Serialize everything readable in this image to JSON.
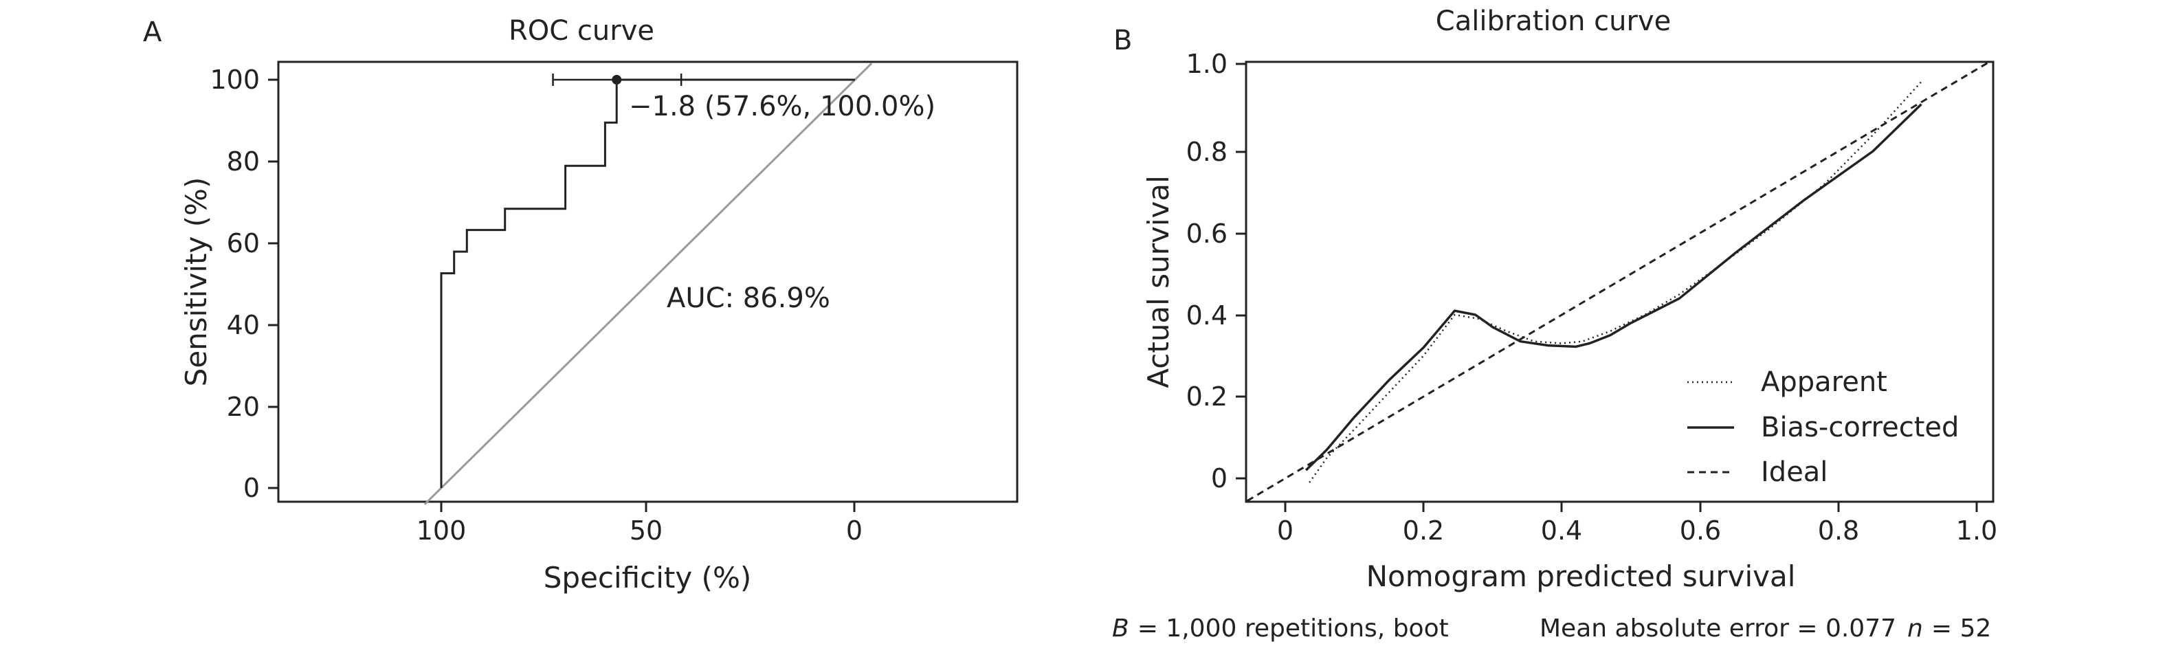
{
  "panels": {
    "a_label": "A",
    "b_label": "B"
  },
  "chart_data": [
    {
      "type": "line",
      "title": "ROC curve",
      "xlabel": "Specificity (%)",
      "ylabel": "Sensitivity (%)",
      "x_reversed": true,
      "xlim": [
        138,
        -30
      ],
      "ylim": [
        -4,
        105
      ],
      "xticks": [
        100,
        50,
        0
      ],
      "yticks": [
        0,
        20,
        40,
        60,
        80,
        100
      ],
      "xtick_labels": [
        "100",
        "50",
        "0"
      ],
      "ytick_labels": [
        "0",
        "20",
        "40",
        "60",
        "80",
        "100"
      ],
      "roc_points": [
        [
          100,
          0
        ],
        [
          100,
          52.6
        ],
        [
          96.9,
          52.6
        ],
        [
          96.9,
          57.9
        ],
        [
          93.8,
          57.9
        ],
        [
          93.8,
          63.2
        ],
        [
          84.6,
          63.2
        ],
        [
          84.6,
          68.4
        ],
        [
          70,
          68.4
        ],
        [
          70,
          78.9
        ],
        [
          60.4,
          78.9
        ],
        [
          60.4,
          89.5
        ],
        [
          57.6,
          89.5
        ],
        [
          57.6,
          100
        ],
        [
          0,
          100
        ]
      ],
      "diagonal": [
        [
          104,
          -4
        ],
        [
          -4,
          104
        ]
      ],
      "threshold_point": {
        "specificity": 57.6,
        "sensitivity": 100,
        "label": "−1.8 (57.6%, 100.0%)"
      },
      "threshold_ci": {
        "low": 42,
        "high": 73,
        "cap_at_sensitivity": 100
      },
      "auc_label": "AUC: 86.9%",
      "colors": {
        "roc": "#222222",
        "diagonal": "#9a9a9a"
      }
    },
    {
      "type": "line",
      "title": "Calibration curve",
      "xlabel": "Nomogram predicted survival",
      "ylabel": "Actual survival",
      "xlim": [
        -0.055,
        1.02
      ],
      "ylim": [
        -0.055,
        1.005
      ],
      "xticks": [
        0,
        0.2,
        0.4,
        0.6,
        0.8,
        1.0
      ],
      "yticks": [
        0,
        0.2,
        0.4,
        0.6,
        0.8,
        1.0
      ],
      "xtick_labels": [
        "0",
        "0.2",
        "0.4",
        "0.6",
        "0.8",
        "1.0"
      ],
      "ytick_labels": [
        "0",
        "0.2",
        "0.4",
        "0.6",
        "0.8",
        "1.0"
      ],
      "series": [
        {
          "name": "Apparent",
          "style": "dotted",
          "x": [
            0.035,
            0.06,
            0.1,
            0.15,
            0.2,
            0.245,
            0.28,
            0.32,
            0.36,
            0.4,
            0.43,
            0.47,
            0.52,
            0.57,
            0.62,
            0.7,
            0.78,
            0.85,
            0.92
          ],
          "y": [
            -0.01,
            0.05,
            0.12,
            0.21,
            0.3,
            0.4,
            0.39,
            0.36,
            0.335,
            0.33,
            0.335,
            0.36,
            0.4,
            0.45,
            0.51,
            0.61,
            0.72,
            0.84,
            0.97
          ]
        },
        {
          "name": "Bias-corrected",
          "style": "solid",
          "x": [
            0.03,
            0.06,
            0.1,
            0.15,
            0.2,
            0.245,
            0.275,
            0.3,
            0.34,
            0.38,
            0.42,
            0.44,
            0.47,
            0.5,
            0.57,
            0.65,
            0.75,
            0.85,
            0.92
          ],
          "y": [
            0.02,
            0.07,
            0.15,
            0.24,
            0.32,
            0.41,
            0.4,
            0.37,
            0.335,
            0.325,
            0.322,
            0.33,
            0.35,
            0.38,
            0.44,
            0.55,
            0.68,
            0.8,
            0.915
          ]
        },
        {
          "name": "Ideal",
          "style": "dashed",
          "x": [
            -0.055,
            1.02
          ],
          "y": [
            -0.055,
            1.02
          ]
        }
      ],
      "legend_position": "bottom-right",
      "footer": {
        "boot_label": "= 1,000 repetitions, boot",
        "boot_symbol": "B",
        "mae_label": "Mean absolute error = 0.077",
        "n_symbol": "n",
        "n_label": "= 52"
      }
    }
  ]
}
